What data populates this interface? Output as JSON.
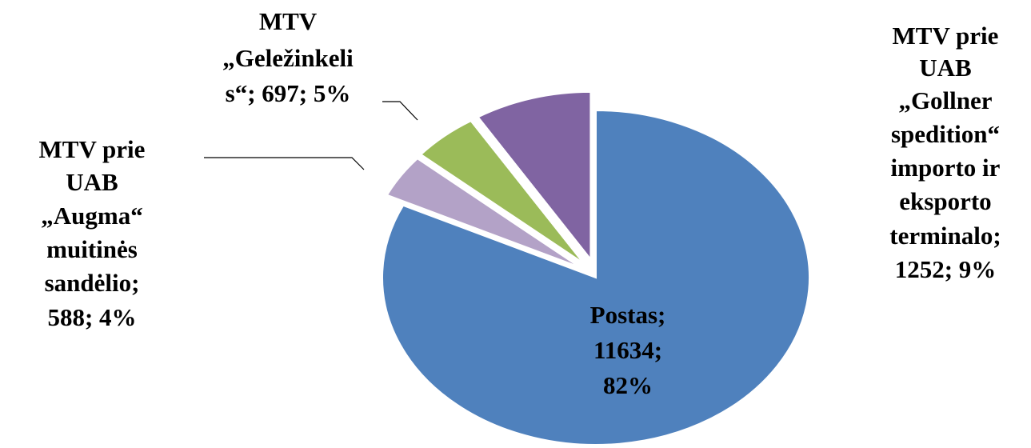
{
  "chart_data": {
    "type": "pie",
    "values": [
      11634,
      588,
      697,
      1252
    ],
    "value_labels": [
      [
        "Postas;",
        "11634;",
        "82%"
      ],
      [
        "MTV prie",
        "UAB",
        "„Augma“",
        "muitinės",
        "sandėlio;",
        "588; 4%"
      ],
      [
        "MTV",
        "„Geležinkeli",
        "s“; 697; 5%"
      ],
      [
        "MTV prie",
        "UAB",
        "„Gollner",
        "spedition“",
        "importo ir",
        "eksporto",
        "terminalo;",
        "1252; 9%"
      ]
    ],
    "colors": [
      "#4f81bd",
      "#b3a2c7",
      "#9bbb59",
      "#8064a2"
    ],
    "exploded": [
      false,
      true,
      true,
      true
    ]
  }
}
